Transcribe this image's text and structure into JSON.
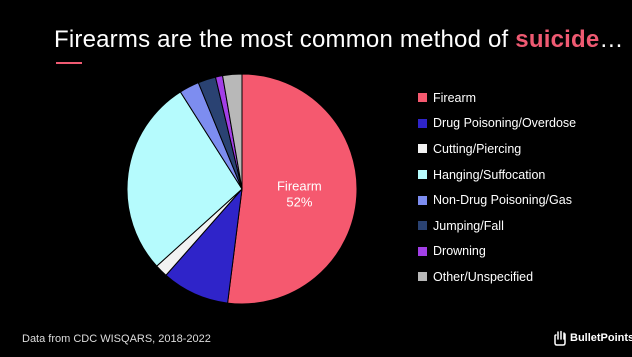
{
  "title": {
    "prefix": "Firearms are the most common method of ",
    "highlight": "suicide",
    "suffix": "…",
    "highlight_color": "#ef5a72"
  },
  "chart_data": {
    "type": "pie",
    "slices": [
      {
        "label": "Firearm",
        "value": 52,
        "color": "#f5596f",
        "show_label": true
      },
      {
        "label": "Drug Poisoning/Overdose",
        "value": 9.5,
        "color": "#2f24c9"
      },
      {
        "label": "Cutting/Piercing",
        "value": 1.8,
        "color": "#f2f2f2"
      },
      {
        "label": "Hanging/Suffocation",
        "value": 27.7,
        "color": "#b5fbfd"
      },
      {
        "label": "Non-Drug Poisoning/Gas",
        "value": 2.8,
        "color": "#7d8df0"
      },
      {
        "label": "Jumping/Fall",
        "value": 2.5,
        "color": "#2a4272"
      },
      {
        "label": "Drowning",
        "value": 1.0,
        "color": "#a23fe6"
      },
      {
        "label": "Other/Unspecified",
        "value": 2.7,
        "color": "#b8b8b8"
      }
    ],
    "inner_label": {
      "name": "Firearm",
      "value": "52%"
    },
    "legend_placement": "right"
  },
  "legend": [
    {
      "label": "Firearm",
      "color": "#f5596f"
    },
    {
      "label": "Drug Poisoning/Overdose",
      "color": "#2f24c9"
    },
    {
      "label": "Cutting/Piercing",
      "color": "#f2f2f2"
    },
    {
      "label": "Hanging/Suffocation",
      "color": "#b5fbfd"
    },
    {
      "label": "Non-Drug Poisoning/Gas",
      "color": "#7d8df0"
    },
    {
      "label": "Jumping/Fall",
      "color": "#2a4272"
    },
    {
      "label": "Drowning",
      "color": "#a23fe6"
    },
    {
      "label": "Other/Unspecified",
      "color": "#b8b8b8"
    }
  ],
  "footer": {
    "source": "Data from CDC WISQARS, 2018-2022",
    "brand": "BulletPoints",
    "brand_icon": "hand-logo-icon"
  }
}
